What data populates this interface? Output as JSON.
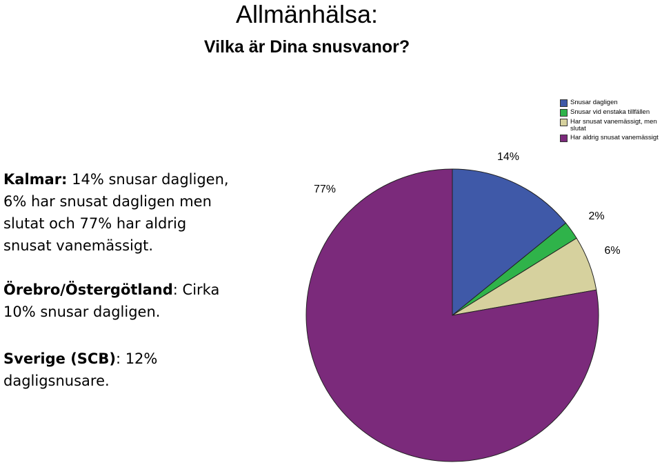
{
  "title": "Allmänhälsa:",
  "subtitle": "Vilka är Dina snusvanor?",
  "notes": [
    {
      "label": "Kalmar:",
      "text": " 14% snusar dagligen, 6% har snusat dagligen men slutat och 77% har aldrig snusat vanemässigt."
    },
    {
      "label": "Örebro/Östergötland",
      "text": ": Cirka 10% snusar dagligen."
    },
    {
      "label": "Sverige (SCB)",
      "text": ": 12% dagligsnusare."
    }
  ],
  "chart_data": {
    "type": "pie",
    "categories": [
      "Snusar dagligen",
      "Snusar vid enstaka tillfällen",
      "Har snusat vanemässigt, men slutat",
      "Har aldrig snusat vanemässigt"
    ],
    "values": [
      14,
      2,
      6,
      77
    ],
    "value_labels": [
      "14%",
      "2%",
      "6%",
      "77%"
    ],
    "colors": [
      "#3f59a8",
      "#2fb34a",
      "#d6d19e",
      "#7b2a7b"
    ]
  }
}
